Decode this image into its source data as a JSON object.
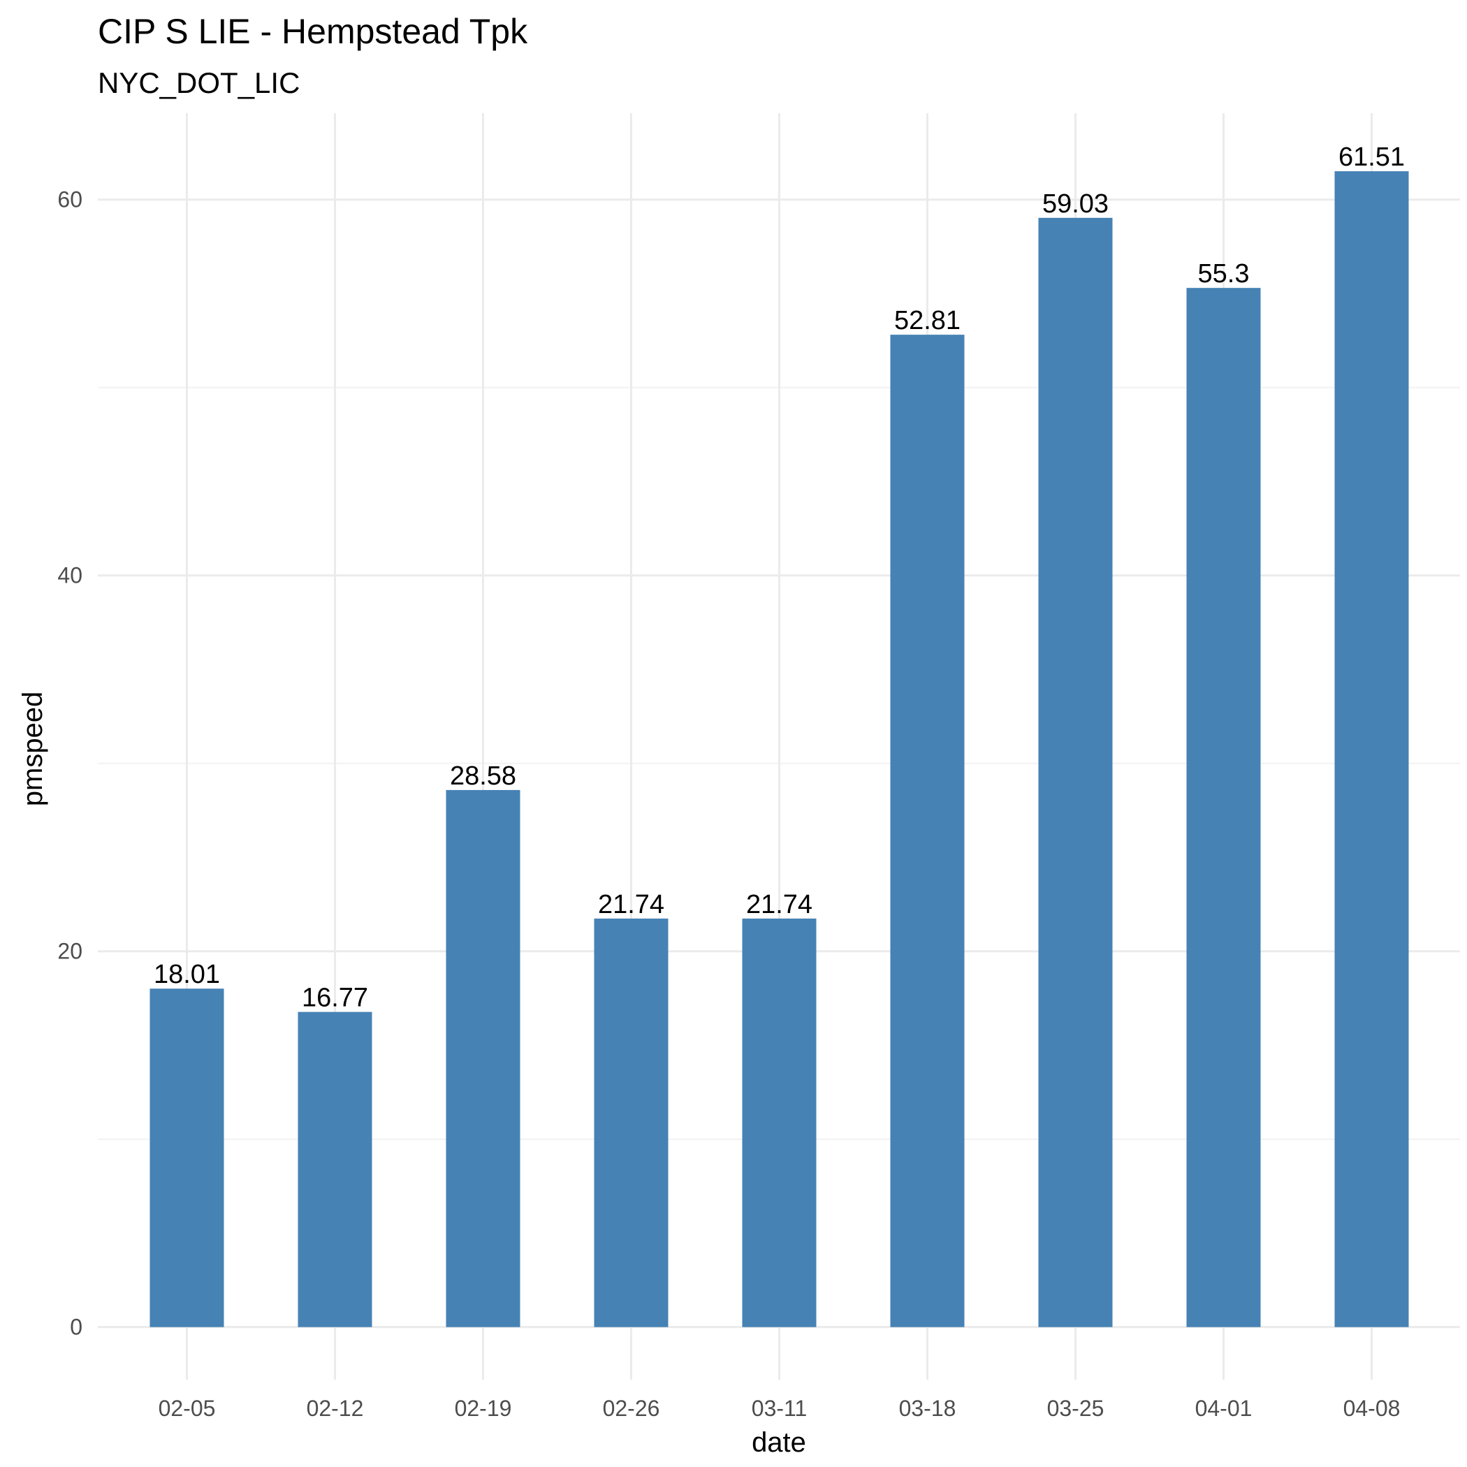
{
  "chart_data": {
    "type": "bar",
    "title": "CIP S LIE - Hempstead Tpk",
    "subtitle": "NYC_DOT_LIC",
    "xlabel": "date",
    "ylabel": "pmspeed",
    "categories": [
      "02-05",
      "02-12",
      "02-19",
      "02-26",
      "03-11",
      "03-18",
      "03-25",
      "04-01",
      "04-08"
    ],
    "values": [
      18.01,
      16.77,
      28.58,
      21.74,
      21.74,
      52.81,
      59.03,
      55.3,
      61.51
    ],
    "value_labels": [
      "18.01",
      "16.77",
      "28.58",
      "21.74",
      "21.74",
      "52.81",
      "59.03",
      "55.3",
      "61.51"
    ],
    "yticks": [
      0,
      20,
      40,
      60
    ],
    "ylim": [
      -2.8,
      64.6
    ],
    "grid": true,
    "legend": "none",
    "bar_color": "#4682b4"
  }
}
